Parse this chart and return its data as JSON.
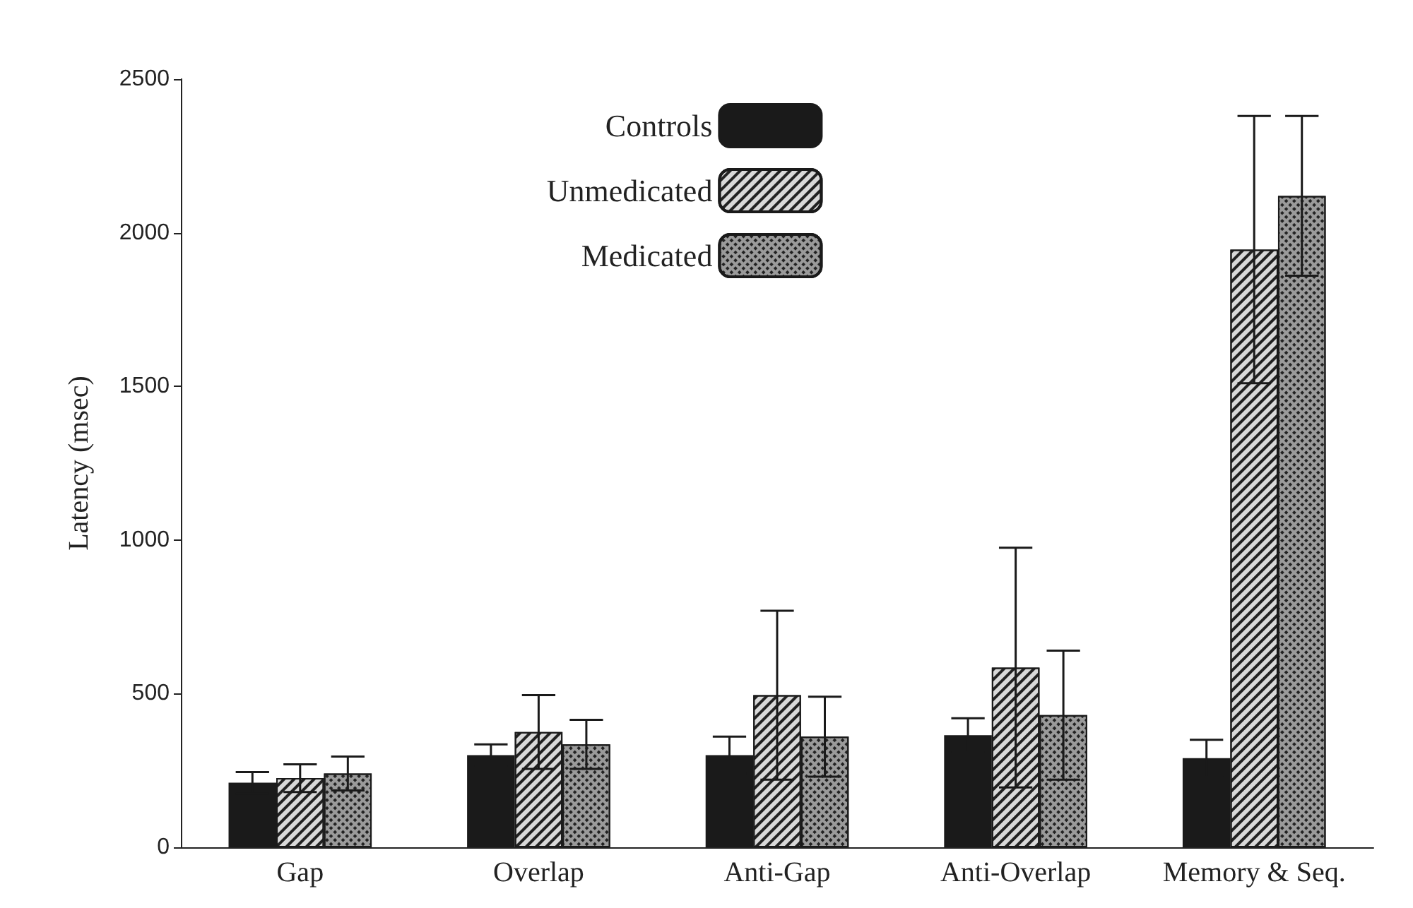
{
  "chart_data": {
    "type": "bar",
    "ylabel": "Latency (msec)",
    "categories": [
      "Gap",
      "Overlap",
      "Anti-Gap",
      "Anti-Overlap",
      "Memory & Seq."
    ],
    "series": [
      {
        "name": "Controls",
        "color": "#1a1a1a",
        "values": [
          210,
          300,
          300,
          365,
          290
        ],
        "errors": [
          35,
          35,
          60,
          55,
          60
        ]
      },
      {
        "name": "Unmedicated",
        "color": "#d9d9d9",
        "values": [
          225,
          375,
          495,
          585,
          1945
        ],
        "errors": [
          45,
          120,
          275,
          390,
          435
        ]
      },
      {
        "name": "Medicated",
        "color": "#9a9a9a",
        "values": [
          240,
          335,
          360,
          430,
          2120
        ],
        "errors": [
          55,
          80,
          130,
          210,
          260
        ]
      }
    ],
    "ylim": [
      0,
      2500
    ],
    "yticks": [
      0,
      500,
      1000,
      1500,
      2000,
      2500
    ],
    "grid": false,
    "legend": "top"
  }
}
